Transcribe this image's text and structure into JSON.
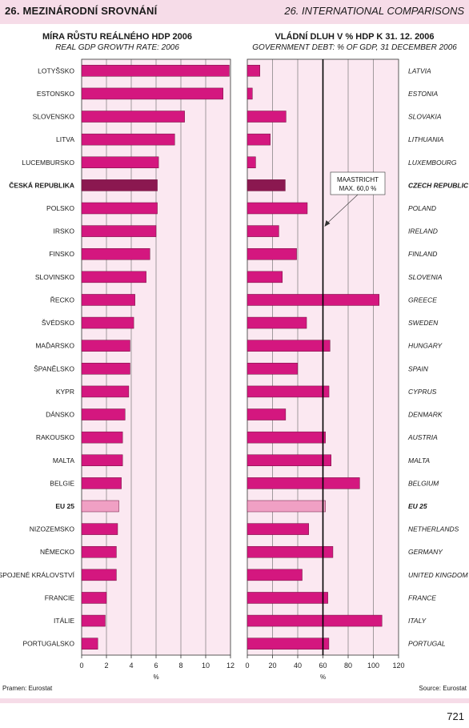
{
  "header": {
    "left": "26. MEZINÁRODNÍ SROVNÁNÍ",
    "right": "26. INTERNATIONAL COMPARISONS"
  },
  "colors": {
    "bar": "#d4177f",
    "highlight": "#8b1850",
    "eu": "#f0a0c4",
    "plot_bg": "#fbe8f1",
    "maastricht_line": "#000000"
  },
  "chart_data": [
    {
      "type": "bar",
      "orientation": "horizontal",
      "title": "MÍRA RŮSTU REÁLNÉHO HDP 2006",
      "subtitle": "REAL GDP GROWTH RATE: 2006",
      "xlabel": "%",
      "xlim": [
        0,
        12
      ],
      "xticks": [
        0,
        2,
        4,
        6,
        8,
        10,
        12
      ],
      "grid": true,
      "categories": [
        "LOTYŠSKO",
        "ESTONSKO",
        "SLOVENSKO",
        "LITVA",
        "LUCEMBURSKO",
        "ČESKÁ REPUBLIKA",
        "POLSKO",
        "IRSKO",
        "FINSKO",
        "SLOVINSKO",
        "ŘECKO",
        "ŠVÉDSKO",
        "MAĎARSKO",
        "ŠPANĚLSKO",
        "KYPR",
        "DÁNSKO",
        "RAKOUSKO",
        "MALTA",
        "BELGIE",
        "EU 25",
        "NIZOZEMSKO",
        "NĚMECKO",
        "SPOJENÉ KRÁLOVSTVÍ",
        "FRANCIE",
        "ITÁLIE",
        "PORTUGALSKO"
      ],
      "values": [
        11.9,
        11.4,
        8.3,
        7.5,
        6.2,
        6.1,
        6.1,
        6.0,
        5.5,
        5.2,
        4.3,
        4.2,
        3.9,
        3.9,
        3.8,
        3.5,
        3.3,
        3.3,
        3.2,
        3.0,
        2.9,
        2.8,
        2.8,
        2.0,
        1.9,
        1.3
      ],
      "highlight": [
        "ČESKÁ REPUBLIKA",
        "EU 25"
      ],
      "source": "Pramen: Eurostat"
    },
    {
      "type": "bar",
      "orientation": "horizontal",
      "title": "VLÁDNÍ DLUH V % HDP K 31. 12. 2006",
      "subtitle": "GOVERNMENT DEBT: % OF GDP, 31 DECEMBER 2006",
      "xlabel": "%",
      "xlim": [
        0,
        120
      ],
      "xticks": [
        0,
        20,
        40,
        60,
        80,
        100,
        120
      ],
      "grid": true,
      "categories": [
        "LATVIA",
        "ESTONIA",
        "SLOVAKIA",
        "LITHUANIA",
        "LUXEMBOURG",
        "CZECH REPUBLIC",
        "POLAND",
        "IRELAND",
        "FINLAND",
        "SLOVENIA",
        "GREECE",
        "SWEDEN",
        "HUNGARY",
        "SPAIN",
        "CYPRUS",
        "DENMARK",
        "AUSTRIA",
        "MALTA",
        "BELGIUM",
        "EU 25",
        "NETHERLANDS",
        "GERMANY",
        "UNITED KINGDOM",
        "FRANCE",
        "ITALY",
        "PORTUGAL"
      ],
      "values": [
        10.0,
        4.0,
        30.7,
        18.2,
        6.6,
        30.1,
        47.6,
        25.0,
        39.1,
        27.8,
        104.6,
        47.0,
        65.6,
        39.9,
        64.8,
        30.4,
        62.0,
        66.5,
        89.1,
        62.0,
        48.7,
        67.9,
        43.5,
        63.9,
        106.8,
        64.7
      ],
      "highlight": [
        "CZECH REPUBLIC",
        "EU 25"
      ],
      "reference_line": {
        "value": 60,
        "label_line1": "MAASTRICHT",
        "label_line2": "MAX. 60,0 %"
      },
      "source": "Source: Eurostat"
    }
  ],
  "page_number": "721"
}
